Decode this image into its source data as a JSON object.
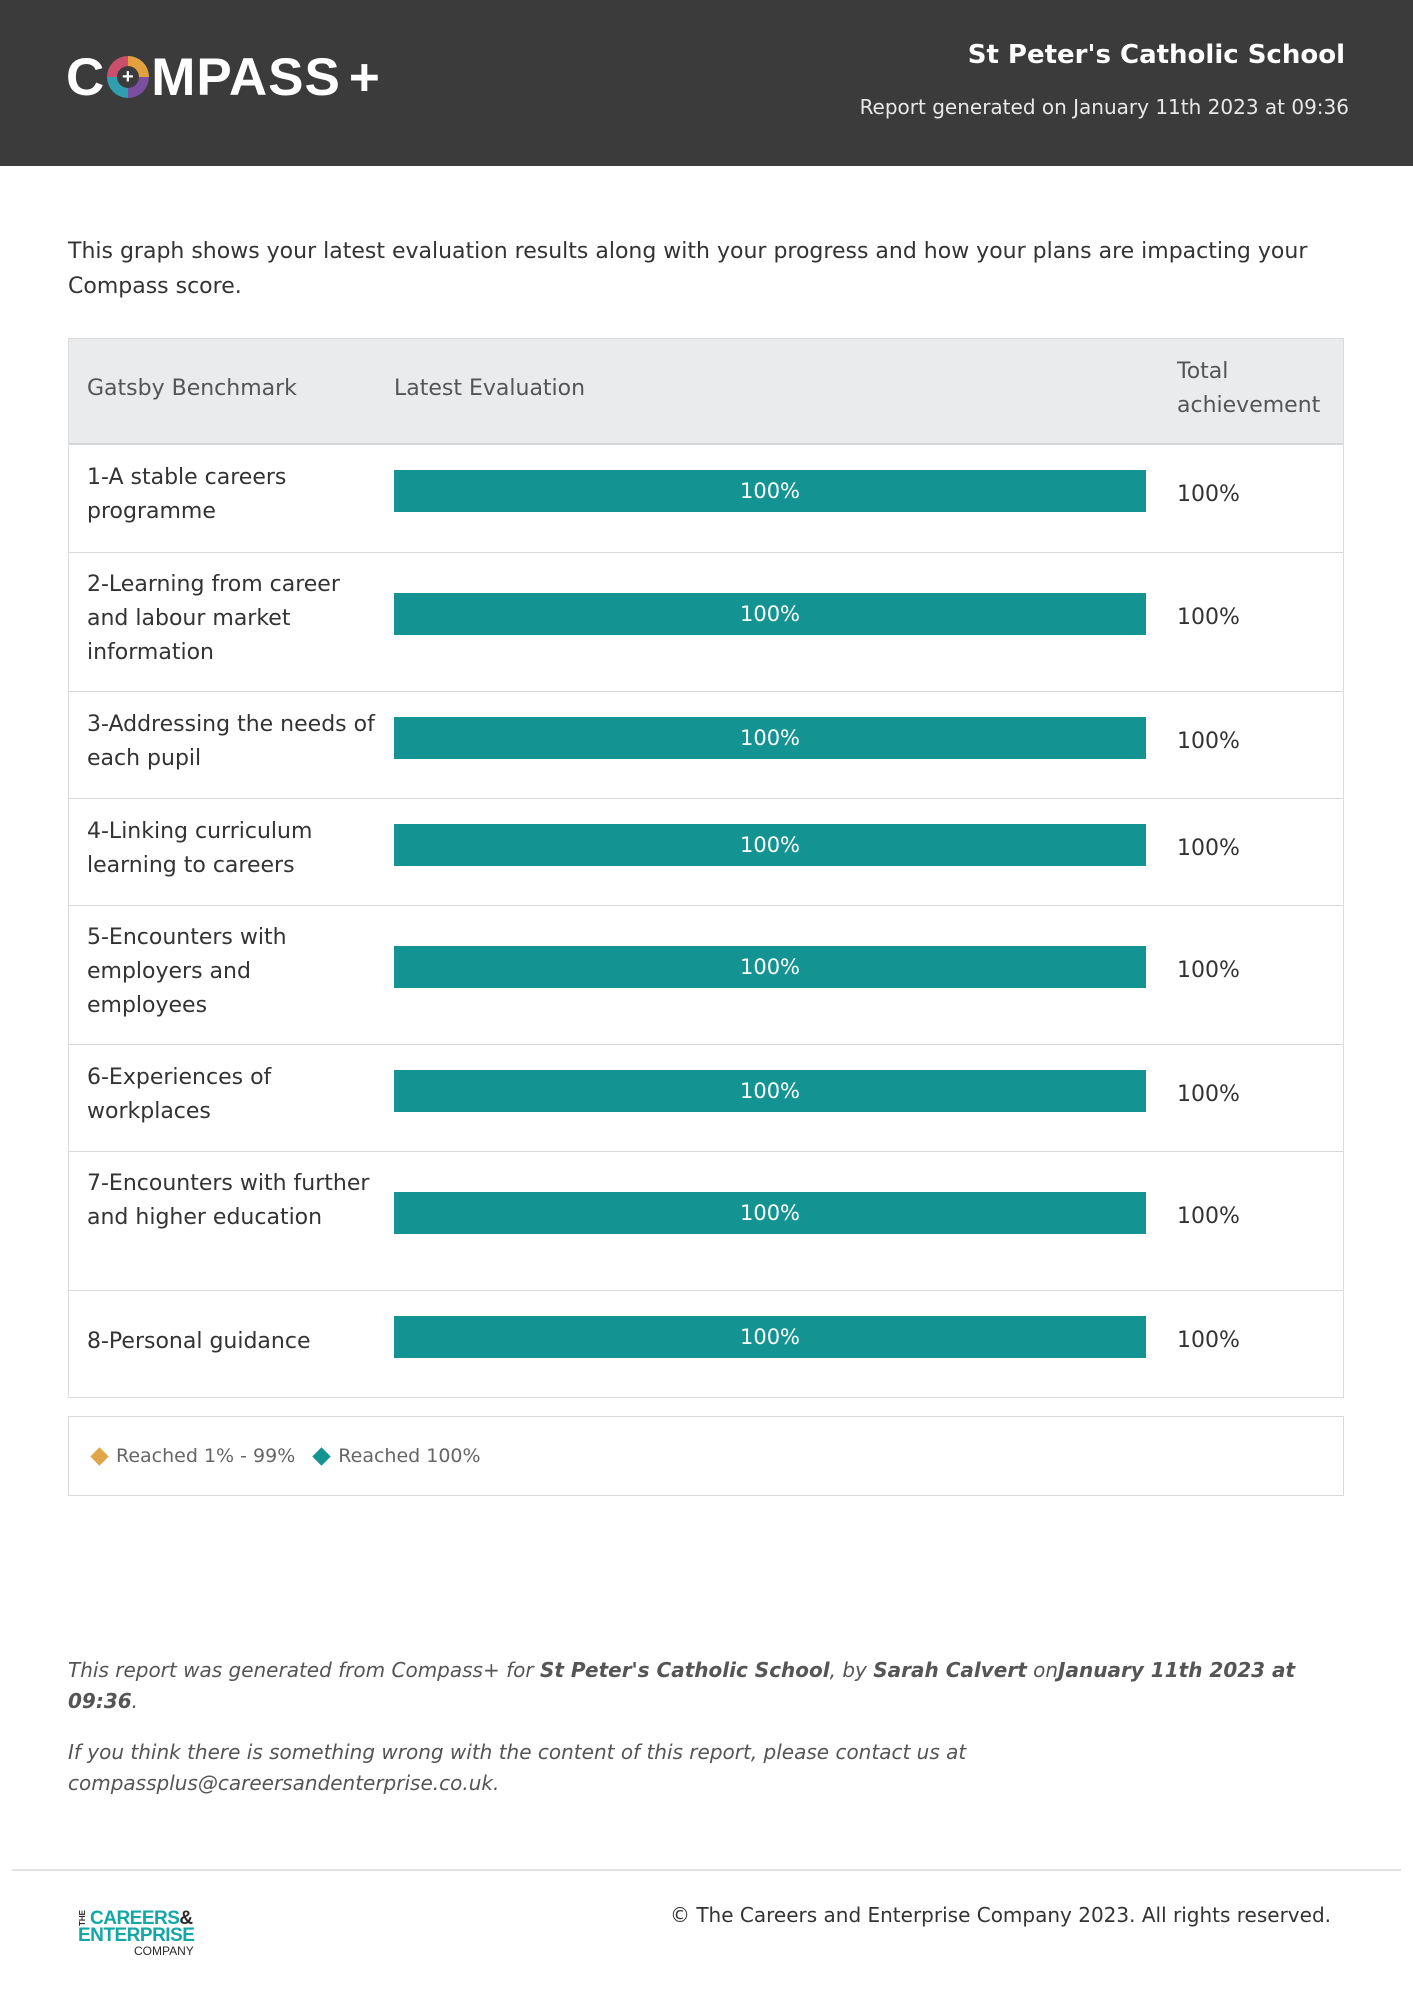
{
  "header": {
    "logo_text_left": "C",
    "logo_text_right": "MPASS",
    "logo_plus": "+",
    "school_name": "St Peter's Catholic School",
    "generated": "Report generated on January 11th 2023 at 09:36"
  },
  "intro": "This graph shows your latest evaluation results along with your progress and how your plans are impacting your Compass score.",
  "table": {
    "headers": {
      "benchmark": "Gatsby Benchmark",
      "evaluation": "Latest Evaluation",
      "total": "Total achievement"
    },
    "rows": [
      {
        "name": "1-A stable careers programme",
        "progress": 1.0,
        "bar_label": "100%",
        "total": "100%"
      },
      {
        "name": "2-Learning from career and labour market information",
        "progress": 1.0,
        "bar_label": "100%",
        "total": "100%"
      },
      {
        "name": "3-Addressing the needs of each pupil",
        "progress": 1.0,
        "bar_label": "100%",
        "total": "100%"
      },
      {
        "name": "4-Linking curriculum learning to careers",
        "progress": 1.0,
        "bar_label": "100%",
        "total": "100%"
      },
      {
        "name": "5-Encounters with employers and employees",
        "progress": 1.0,
        "bar_label": "100%",
        "total": "100%"
      },
      {
        "name": "6-Experiences of workplaces",
        "progress": 1.0,
        "bar_label": "100%",
        "total": "100%"
      },
      {
        "name": "7-Encounters with further and higher education",
        "progress": 1.0,
        "bar_label": "100%",
        "total": "100%"
      },
      {
        "name": "8-Personal guidance",
        "progress": 1.0,
        "bar_label": "100%",
        "total": "100%"
      }
    ]
  },
  "legend": {
    "partial": {
      "label": "Reached 1% - 99%",
      "color": "#e2a64a"
    },
    "full": {
      "label": "Reached 100%",
      "color": "#139391"
    }
  },
  "notes": {
    "line1_prefix": "This report was generated from Compass+ for ",
    "line1_school": "St Peter's Catholic School",
    "line1_by": ", by ",
    "line1_person": "Sarah Calvert",
    "line1_on": " on",
    "line1_date": "January 11th 2023 at 09:36",
    "line1_end": ".",
    "line2": "If you think there is something wrong with the content of this report, please contact us at compassplus@careersandenterprise.co.uk."
  },
  "footer": {
    "logo_the": "THE",
    "logo_careers": "CAREERS",
    "logo_amp": "&",
    "logo_enterprise": "ENTERPRISE",
    "logo_company": "COMPANY",
    "copyright": "© The Careers and Enterprise Company 2023. All rights reserved."
  },
  "colors": {
    "header_bg": "#3b3b3b",
    "bar": "#139391"
  }
}
